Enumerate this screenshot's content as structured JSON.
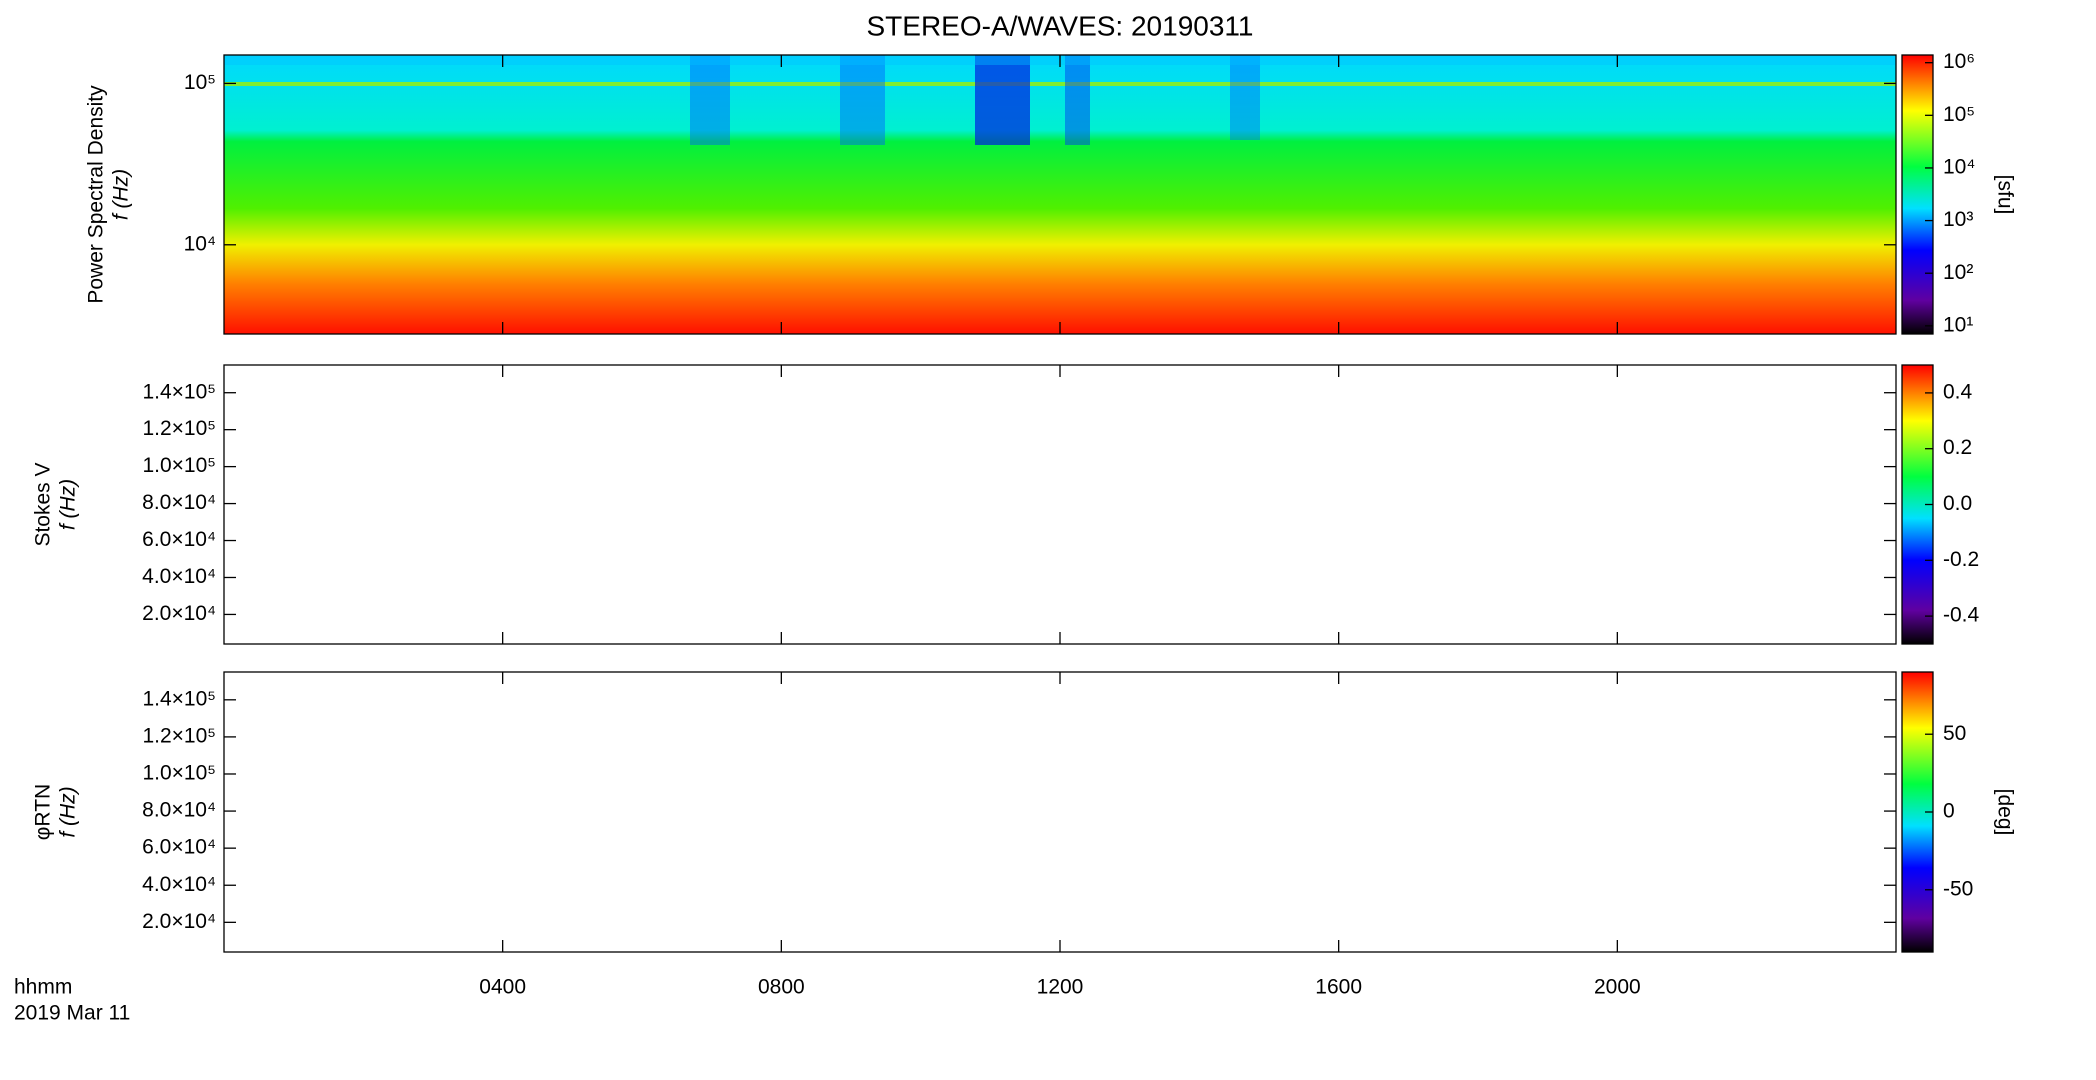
{
  "title": "STEREO-A/WAVES: 20190311",
  "x_label": "hhmm",
  "date_label": "2019 Mar 11",
  "xaxis": {
    "xlim": [
      0,
      24
    ],
    "xticks": [
      {
        "value": 4,
        "label": "0400"
      },
      {
        "value": 8,
        "label": "0800"
      },
      {
        "value": 12,
        "label": "1200"
      },
      {
        "value": 16,
        "label": "1600"
      },
      {
        "value": 20,
        "label": "2000"
      }
    ]
  },
  "chart_data": [
    {
      "type": "spectrogram",
      "ylabel": "Power Spectral Density",
      "ylabel2": "f (Hz)",
      "log_y": true,
      "ylim": [
        2800,
        150000
      ],
      "yticks": [
        {
          "value": 10000,
          "label": "10⁴"
        },
        {
          "value": 100000,
          "label": "10⁵"
        }
      ],
      "colorbar": {
        "log": true,
        "zlim": [
          7,
          1400000
        ],
        "label": "[sfu]",
        "zticks": [
          {
            "value": 10,
            "label": "10¹"
          },
          {
            "value": 100,
            "label": "10²"
          },
          {
            "value": 1000,
            "label": "10³"
          },
          {
            "value": 10000,
            "label": "10⁴"
          },
          {
            "value": 100000,
            "label": "10⁵"
          },
          {
            "value": 1000000,
            "label": "10⁶"
          }
        ]
      }
    },
    {
      "type": "spectrogram",
      "ylabel": "Stokes V",
      "ylabel2": "f (Hz)",
      "log_y": false,
      "ylim": [
        4000,
        155000
      ],
      "yticks": [
        {
          "value": 20000,
          "label": "2.0×10⁴"
        },
        {
          "value": 40000,
          "label": "4.0×10⁴"
        },
        {
          "value": 60000,
          "label": "6.0×10⁴"
        },
        {
          "value": 80000,
          "label": "8.0×10⁴"
        },
        {
          "value": 100000,
          "label": "1.0×10⁵"
        },
        {
          "value": 120000,
          "label": "1.2×10⁵"
        },
        {
          "value": 140000,
          "label": "1.4×10⁵"
        }
      ],
      "colorbar": {
        "log": false,
        "zlim": [
          -0.5,
          0.5
        ],
        "label": null,
        "zticks": [
          -0.4,
          -0.2,
          {
            "value": 0,
            "label": "0.0"
          },
          0.2,
          0.4
        ]
      }
    },
    {
      "type": "spectrogram",
      "ylabel": "φRTN",
      "ylabel2": "f (Hz)",
      "log_y": false,
      "ylim": [
        4000,
        155000
      ],
      "yticks": [
        {
          "value": 20000,
          "label": "2.0×10⁴"
        },
        {
          "value": 40000,
          "label": "4.0×10⁴"
        },
        {
          "value": 60000,
          "label": "6.0×10⁴"
        },
        {
          "value": 80000,
          "label": "8.0×10⁴"
        },
        {
          "value": 100000,
          "label": "1.0×10⁵"
        },
        {
          "value": 120000,
          "label": "1.2×10⁵"
        },
        {
          "value": 140000,
          "label": "1.4×10⁵"
        }
      ],
      "colorbar": {
        "log": false,
        "zlim": [
          -90,
          90
        ],
        "label": "[deg]",
        "zticks": [
          -50,
          0,
          50
        ]
      }
    }
  ]
}
